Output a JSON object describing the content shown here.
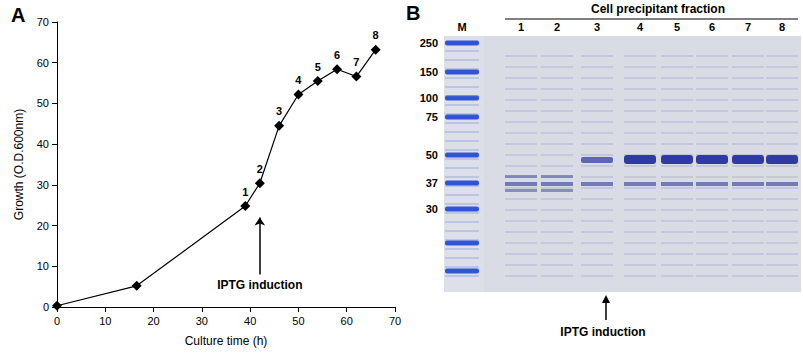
{
  "chart_data": {
    "type": "line",
    "title": "A",
    "x_label": "Culture time (h)",
    "y_label": "Growth (O.D.600nm)",
    "x": [
      0,
      16.5,
      39,
      42,
      46,
      50,
      54,
      58,
      62,
      66
    ],
    "values": [
      0.3,
      5.2,
      24.8,
      30.4,
      44.5,
      52.2,
      55.5,
      58.4,
      56.6,
      63.2
    ],
    "point_labels": [
      null,
      null,
      "1",
      "2",
      "3",
      "4",
      "5",
      "6",
      "7",
      "8"
    ],
    "color": "#000000",
    "marker": "diamond",
    "line_style": "solid",
    "xlim": [
      0,
      70
    ],
    "xticks": [
      0,
      10,
      20,
      30,
      40,
      50,
      60,
      70
    ],
    "ylim": [
      0,
      70
    ],
    "yticks": [
      0,
      10,
      20,
      30,
      40,
      50,
      60,
      70
    ],
    "grid": false,
    "annotations": [
      {
        "text": "IPTG induction",
        "arrow_from": [
          42,
          8
        ],
        "arrow_to": [
          42,
          22
        ]
      }
    ]
  },
  "gel": {
    "panel": "B",
    "header": "Cell precipitant fraction",
    "lanes": [
      "M",
      "1",
      "2",
      "3",
      "4",
      "5",
      "6",
      "7",
      "8"
    ],
    "marker_sizes": [
      250,
      150,
      100,
      75,
      50,
      37,
      30
    ],
    "annotation": "IPTG induction"
  }
}
